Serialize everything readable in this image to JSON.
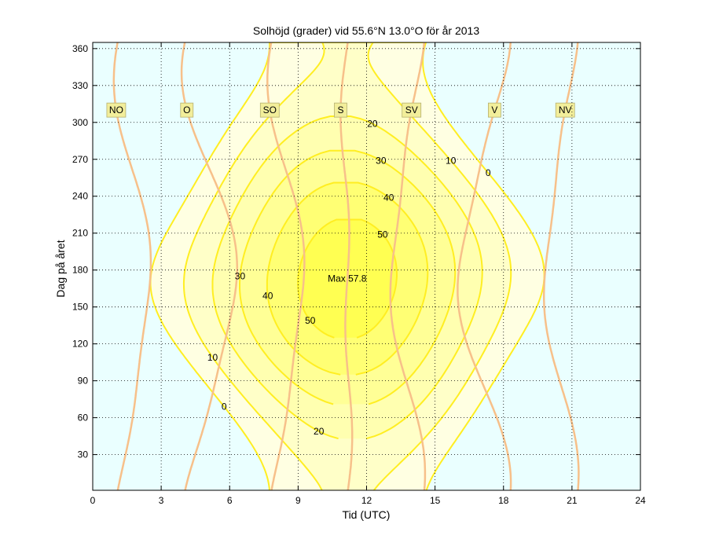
{
  "chart_data": {
    "type": "contour",
    "title": "Solhöjd (grader) vid 55.6°N 13.0°O för år 2013",
    "xlabel": "Tid (UTC)",
    "ylabel": "Dag på året",
    "xlim": [
      0,
      24
    ],
    "ylim": [
      1,
      365
    ],
    "xticks": [
      0,
      3,
      6,
      9,
      12,
      15,
      18,
      21,
      24
    ],
    "yticks": [
      30,
      60,
      90,
      120,
      150,
      180,
      210,
      240,
      270,
      300,
      330,
      360
    ],
    "grid": true,
    "latitude_deg": 55.6,
    "longitude_deg": 13.0,
    "year": 2013,
    "contour_levels": [
      0,
      10,
      20,
      30,
      40,
      50
    ],
    "max_annotation": "Max 57.8",
    "max_value": 57.8,
    "azimuth_lines": [
      {
        "name": "NO",
        "azimuth_deg": 45
      },
      {
        "name": "O",
        "azimuth_deg": 90
      },
      {
        "name": "SO",
        "azimuth_deg": 135
      },
      {
        "name": "S",
        "azimuth_deg": 180
      },
      {
        "name": "SV",
        "azimuth_deg": 225
      },
      {
        "name": "V",
        "azimuth_deg": 270
      },
      {
        "name": "NV",
        "azimuth_deg": 315
      }
    ],
    "colors": {
      "night_fill": "#eaffff",
      "fill_0": "#ffffe2",
      "fill_10": "#ffffc8",
      "fill_20": "#ffffb0",
      "fill_30": "#ffff96",
      "fill_40": "#ffff74",
      "fill_50": "#ffff52",
      "contour_line": "#ffee22",
      "azimuth_line": "#f7c08a",
      "label_box": "#f2ee9a",
      "label_box_edge": "#b5b070"
    }
  }
}
